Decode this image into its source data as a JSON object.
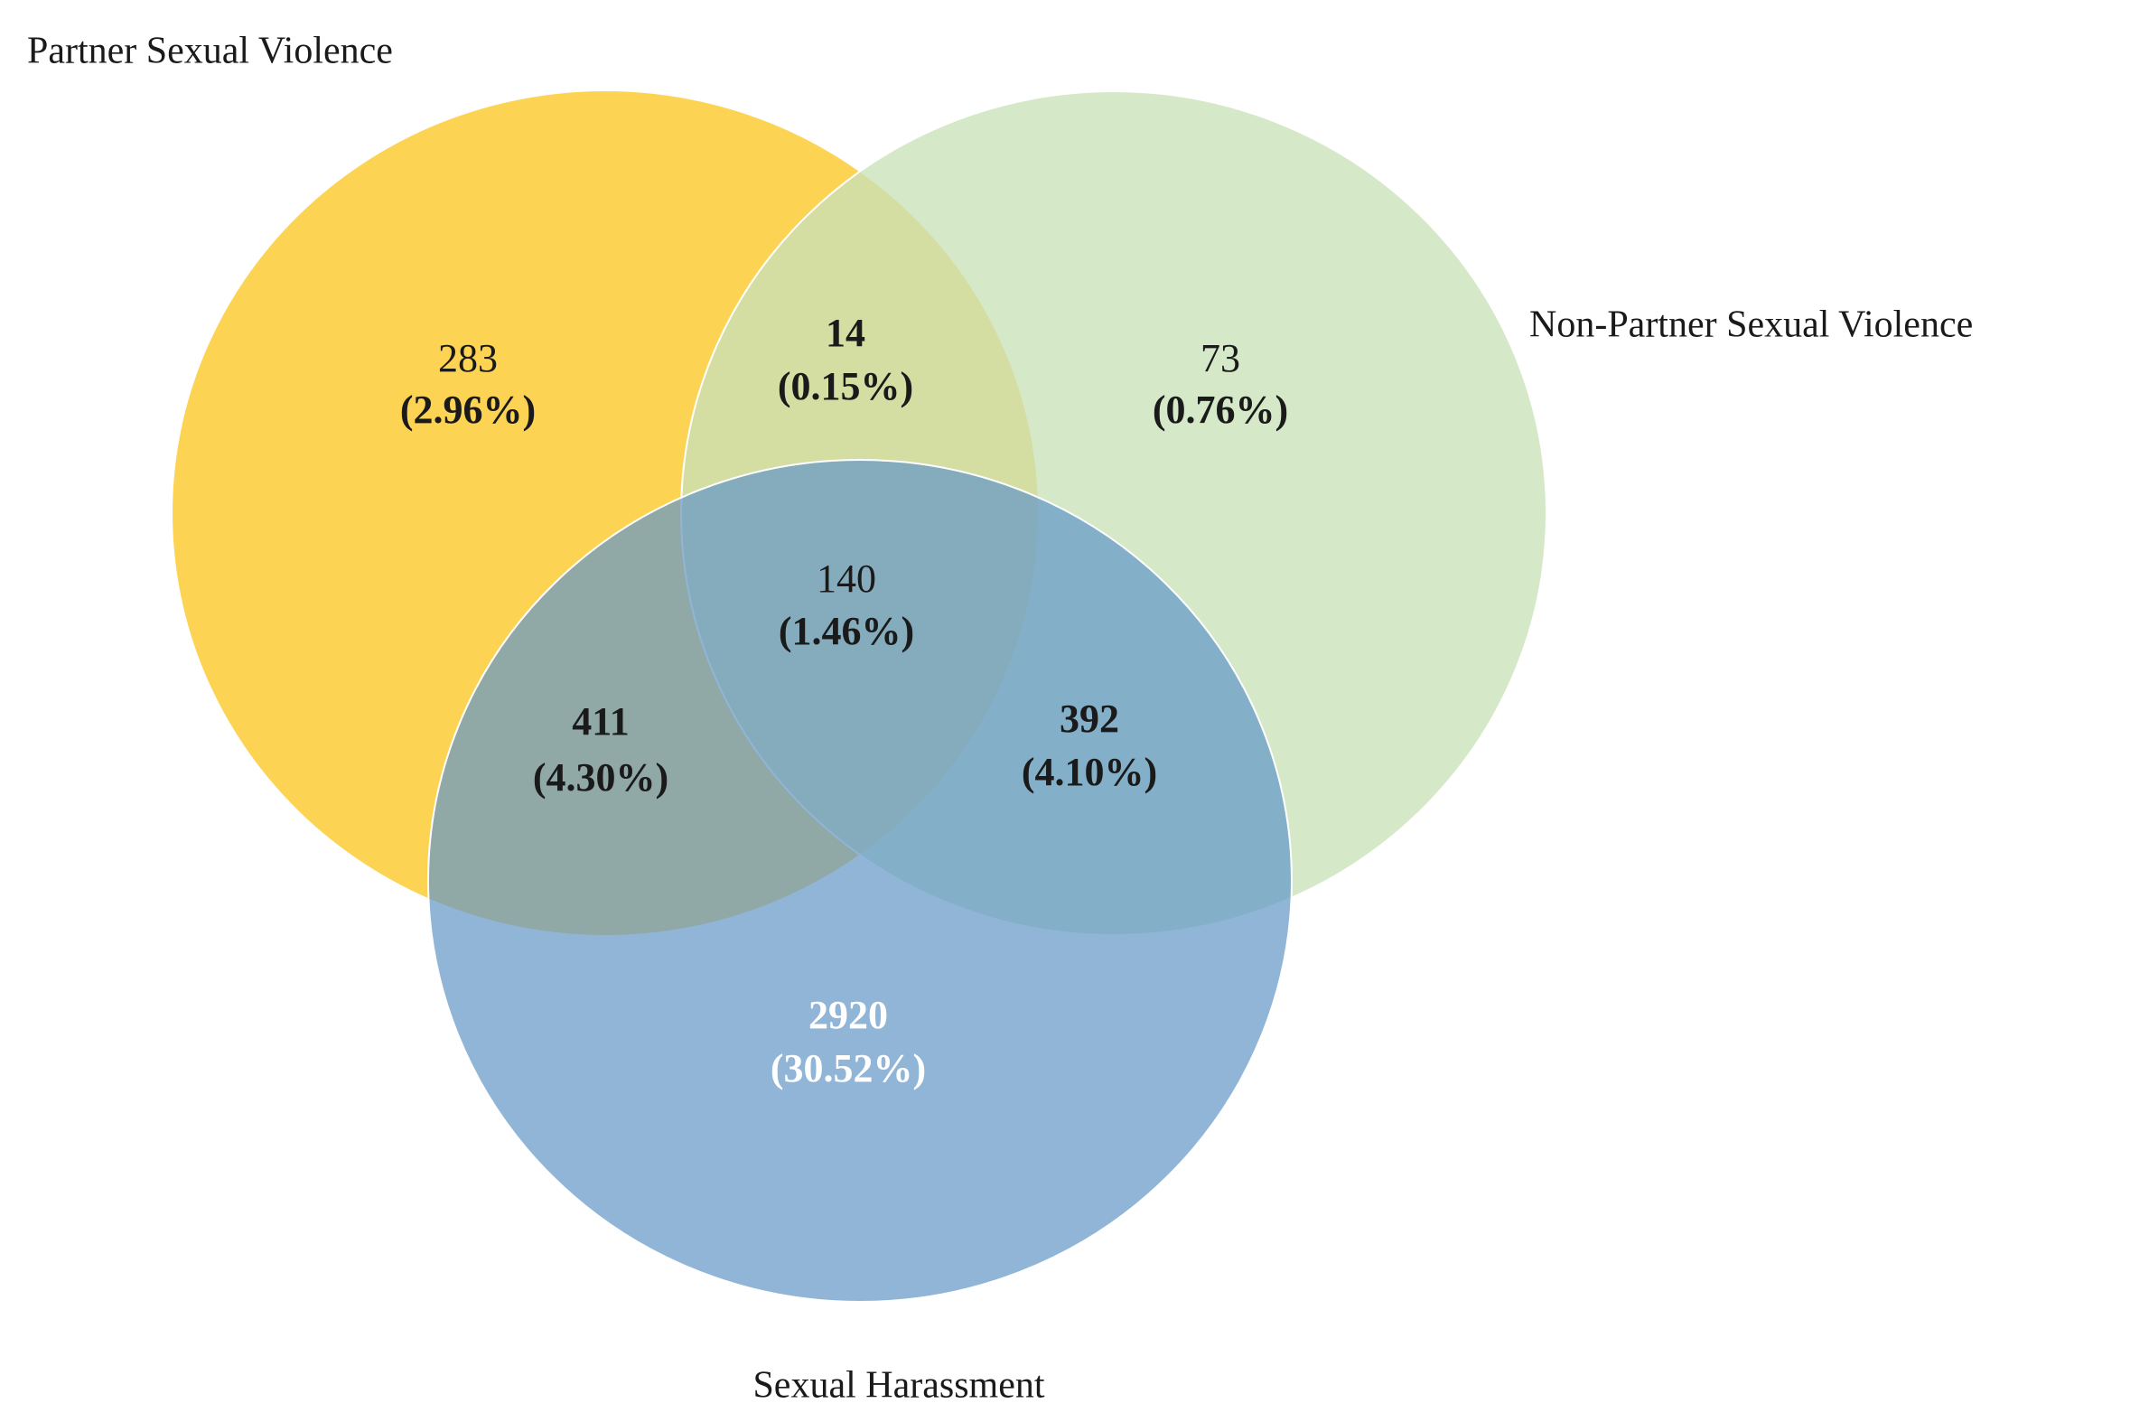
{
  "sets": [
    {
      "label": "Partner Sexual Violence"
    },
    {
      "label": "Non-Partner Sexual Violence"
    },
    {
      "label": "Sexual Harassment"
    }
  ],
  "regions": [
    {
      "count": "283",
      "percent": "(2.96%)"
    },
    {
      "count": "14",
      "percent": "(0.15%)"
    },
    {
      "count": "73",
      "percent": "(0.76%)"
    },
    {
      "count": "140",
      "percent": "(1.46%)"
    },
    {
      "count": "411",
      "percent": "(4.30%)"
    },
    {
      "count": "392",
      "percent": "(4.10%)"
    },
    {
      "count": "2920",
      "percent": "(30.52%)"
    }
  ]
}
